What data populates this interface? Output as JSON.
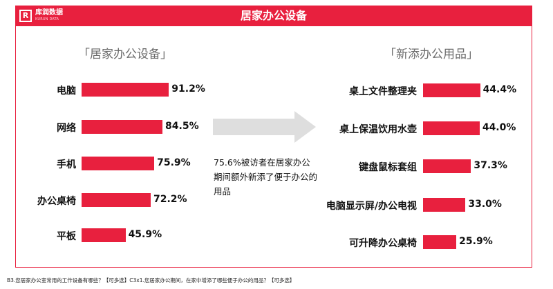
{
  "header": {
    "logo_text": "库润数据",
    "logo_mark": "R",
    "logo_sub": "KURUN DATA",
    "title": "居家办公设备"
  },
  "note": "75.6%被访者在居家办公期间额外新添了便于办公的用品",
  "footnote": "B3.您居家办公室常用的工作设备有哪些？【可多选】C3x1.您居家办公期间，在家中增添了哪些便于办公的用品？【可多选】",
  "colors": {
    "accent": "#e8203e",
    "arrow": "#dedede",
    "frame": "#e8203e"
  },
  "chart_data": [
    {
      "type": "bar",
      "orientation": "horizontal",
      "title": "「居家办公设备」",
      "categories": [
        "电脑",
        "网络",
        "手机",
        "办公桌椅",
        "平板"
      ],
      "values": [
        91.2,
        84.5,
        75.9,
        72.2,
        45.9
      ],
      "value_labels": [
        "91.2%",
        "84.5%",
        "75.9%",
        "72.2%",
        "45.9%"
      ],
      "unit": "%"
    },
    {
      "type": "bar",
      "orientation": "horizontal",
      "title": "「新添办公用品」",
      "categories": [
        "桌上文件整理夹",
        "桌上保温饮用水壶",
        "键盘鼠标套组",
        "电脑显示屏/办公电视",
        "可升降办公桌椅"
      ],
      "values": [
        44.4,
        44.0,
        37.3,
        33.0,
        25.9
      ],
      "value_labels": [
        "44.4%",
        "44.0%",
        "37.3%",
        "33.0%",
        "25.9%"
      ],
      "unit": "%"
    }
  ]
}
